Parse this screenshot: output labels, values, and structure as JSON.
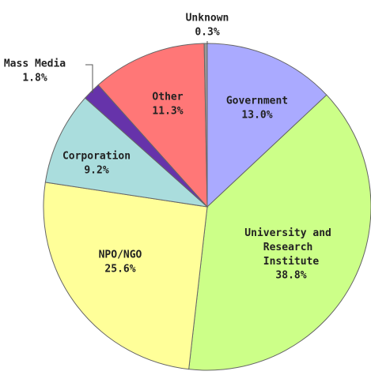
{
  "chart_data": {
    "type": "pie",
    "categories": [
      "Government",
      "University and Research Institute",
      "NPO/NGO",
      "Corporation",
      "Mass Media",
      "Other",
      "Unknown"
    ],
    "values": [
      13.0,
      38.8,
      25.6,
      9.2,
      1.8,
      11.3,
      0.3
    ],
    "value_labels": [
      "13.0%",
      "38.8%",
      "25.6%",
      "9.2%",
      "1.8%",
      "11.3%",
      "0.3%"
    ],
    "colors": [
      "#aaaaff",
      "#ccff88",
      "#ffff99",
      "#aadddd",
      "#6633aa",
      "#ff7777",
      "#999999"
    ]
  }
}
